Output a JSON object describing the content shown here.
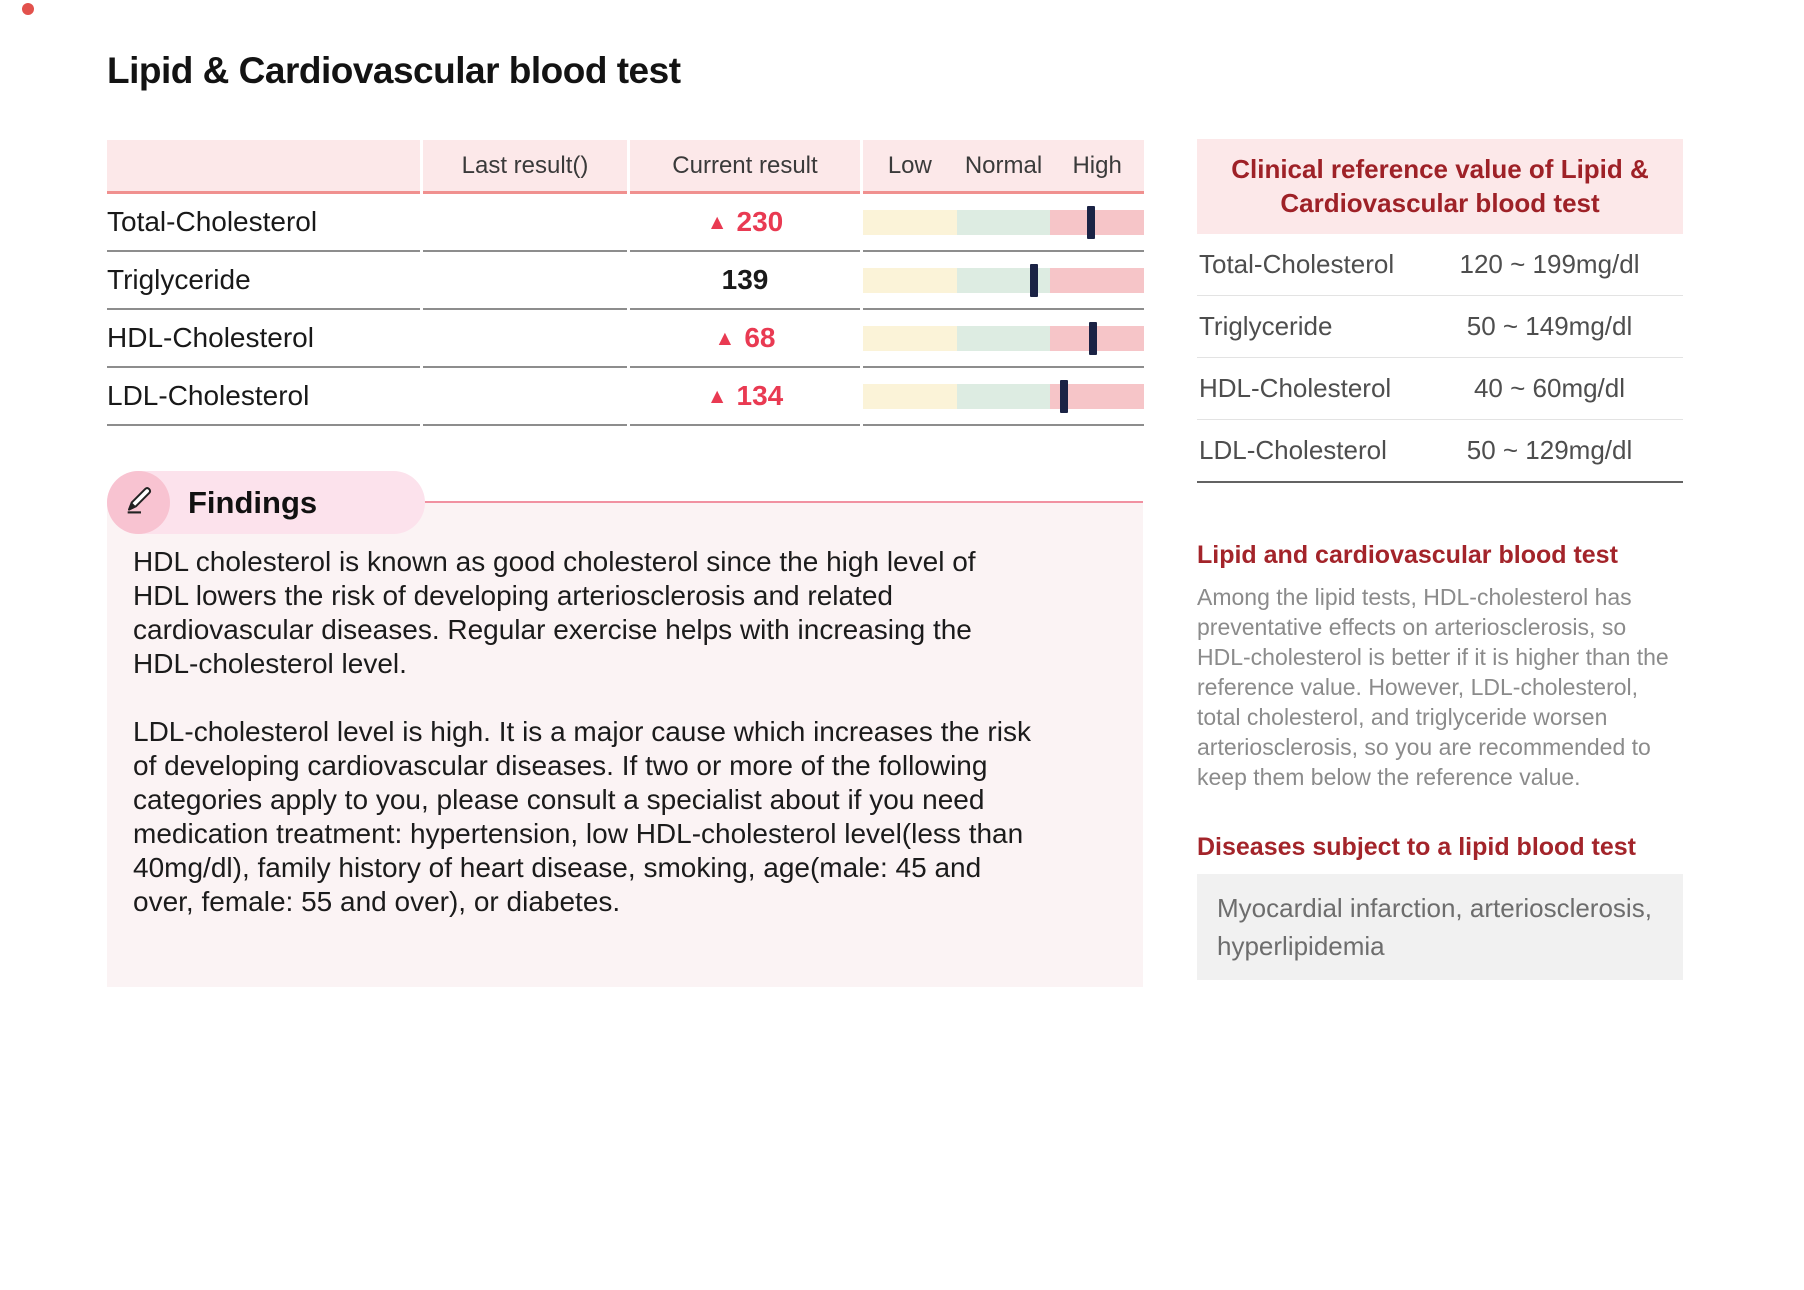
{
  "page": {
    "title": "Lipid & Cardiovascular blood test"
  },
  "glyphs": {
    "up_triangle": "▲"
  },
  "colors": {
    "accent_red": "#e93a52",
    "header_pink": "#fce8e9",
    "header_underline_red": "#f0908f",
    "bar_low_yellow": "#fbf3d8",
    "bar_normal_green": "#ddece2",
    "bar_high_pink": "#f6c5c8",
    "marker_navy": "#1b2345",
    "heading_dark_red": "#9e2127",
    "findings_bg": "#fbf3f4",
    "findings_pill_pink": "#fce2ec",
    "findings_circle_pink": "#f8c3d1",
    "diseases_box_gray": "#f1f1f1"
  },
  "results_table": {
    "columns": {
      "last": "Last result()",
      "current": "Current result",
      "low": "Low",
      "normal": "Normal",
      "high": "High"
    },
    "rows": [
      {
        "name": "Total-Cholesterol",
        "last": "",
        "current": "230",
        "flag": "high",
        "marker_pct": 81
      },
      {
        "name": "Triglyceride",
        "last": "",
        "current": "139",
        "flag": "none",
        "marker_pct": 61
      },
      {
        "name": "HDL-Cholesterol",
        "last": "",
        "current": "68",
        "flag": "high",
        "marker_pct": 82
      },
      {
        "name": "LDL-Cholesterol",
        "last": "",
        "current": "134",
        "flag": "high",
        "marker_pct": 71.5
      }
    ]
  },
  "findings": {
    "title": "Findings",
    "paragraph1": "HDL cholesterol is known as good cholesterol since the high level of HDL lowers the risk of developing arteriosclerosis and related cardiovascular diseases. Regular exercise helps with increasing the HDL-cholesterol level.",
    "paragraph2": "LDL-cholesterol level is high. It is a major cause which increases the risk of developing cardiovascular diseases. If two or more of the following categories apply to you, please consult a specialist about if you need medication treatment: hypertension, low HDL-cholesterol level(less than 40mg/dl), family history of heart disease, smoking, age(male: 45 and over, female: 55 and over), or diabetes."
  },
  "reference_panel": {
    "title": "Clinical reference value of Lipid & Cardiovascular blood test",
    "rows": [
      {
        "name": "Total-Cholesterol",
        "range": "120 ~ 199mg/dl"
      },
      {
        "name": "Triglyceride",
        "range": "50 ~ 149mg/dl"
      },
      {
        "name": "HDL-Cholesterol",
        "range": "40 ~ 60mg/dl"
      },
      {
        "name": "LDL-Cholesterol",
        "range": "50 ~ 129mg/dl"
      }
    ],
    "info": {
      "title": "Lipid and cardiovascular blood test",
      "body": "Among the lipid tests, HDL-cholesterol has preventative effects on arteriosclerosis, so HDL-cholesterol is better if it is higher than the reference value. However, LDL-cholesterol, total cholesterol, and triglyceride worsen arteriosclerosis, so you are recommended to keep them below the reference value."
    },
    "diseases": {
      "title": "Diseases subject to a lipid blood test",
      "body": "Myocardial infarction, arteriosclerosis, hyperlipidemia"
    }
  }
}
